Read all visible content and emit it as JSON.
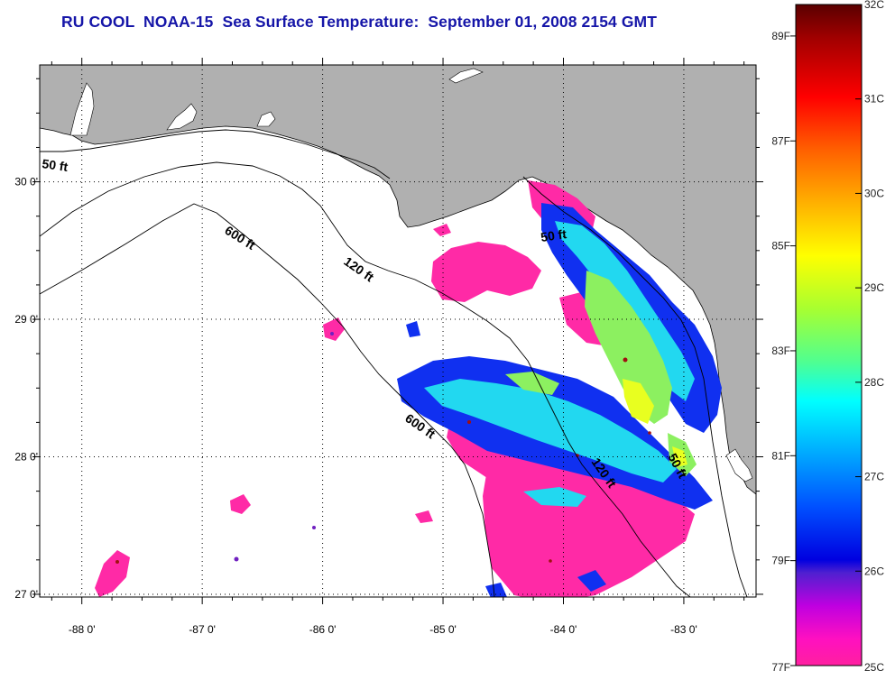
{
  "title": "RU COOL  NOAA-15  Sea Surface Temperature:  September 01, 2008 2154 GMT",
  "map": {
    "lat_labels": [
      "30 0'",
      "29 0'",
      "28 0'",
      "27 0'"
    ],
    "lat_values": [
      30,
      29,
      28,
      27
    ],
    "lon_labels": [
      "-88 0'",
      "-87 0'",
      "-86 0'",
      "-85 0'",
      "-84 0'",
      "-83 0'"
    ],
    "lon_values": [
      -88,
      -87,
      -86,
      -85,
      -84,
      -83
    ],
    "lon_range": [
      -88.35,
      -82.4
    ],
    "lat_range": [
      26.98,
      30.85
    ],
    "contour_labels": [
      "50 ft",
      "600 ft",
      "120 ft",
      "50 ft",
      "600 ft",
      "120 ft",
      "50 ft"
    ],
    "land_color": "#b0b0b0",
    "no_data_color": "#ffffff"
  },
  "colorbar": {
    "celsius_labels": [
      "32C",
      "31C",
      "30C",
      "29C",
      "28C",
      "27C",
      "26C",
      "25C"
    ],
    "fahrenheit_labels": [
      "89F",
      "87F",
      "85F",
      "83F",
      "81F",
      "79F",
      "77F"
    ],
    "celsius_values": [
      32,
      31,
      30,
      29,
      28,
      27,
      26,
      25
    ],
    "fahrenheit_values": [
      89,
      87,
      85,
      83,
      81,
      79,
      77
    ],
    "range_c": [
      25,
      32
    ]
  }
}
